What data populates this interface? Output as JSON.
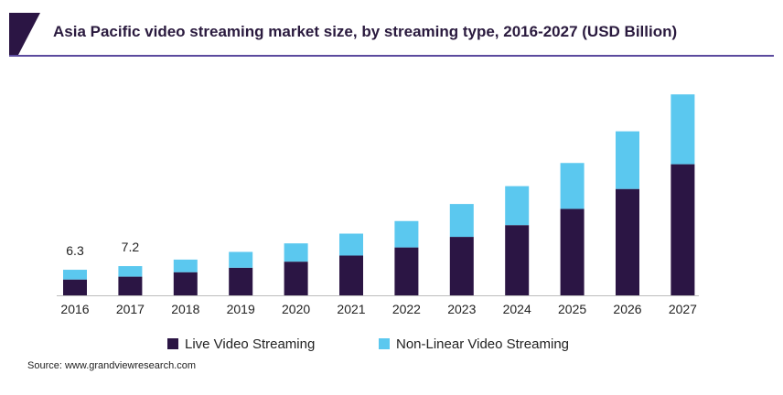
{
  "title": "Asia Pacific video streaming market size, by streaming type, 2016-2027 (USD Billion)",
  "source": "Source: www.grandviewresearch.com",
  "colors": {
    "live": "#2b1544",
    "nonlinear": "#5bc8ef",
    "title_accent": "#2b1544",
    "title_underline": "#5b4a9e"
  },
  "chart_data": {
    "type": "bar",
    "stacked": true,
    "categories": [
      "2016",
      "2017",
      "2018",
      "2019",
      "2020",
      "2021",
      "2022",
      "2023",
      "2024",
      "2025",
      "2026",
      "2027"
    ],
    "series": [
      {
        "name": "Live Video Streaming",
        "values": [
          3.9,
          4.6,
          5.7,
          6.8,
          8.3,
          9.8,
          11.8,
          14.4,
          17.3,
          21.3,
          26.2,
          32.3
        ]
      },
      {
        "name": "Non-Linear Video Streaming",
        "values": [
          2.4,
          2.6,
          3.1,
          3.9,
          4.5,
          5.4,
          6.5,
          8.1,
          9.6,
          11.3,
          14.2,
          17.2
        ]
      }
    ],
    "data_labels": [
      {
        "category": "2016",
        "text": "6.3"
      },
      {
        "category": "2017",
        "text": "7.2"
      }
    ],
    "ylim": [
      0,
      50
    ],
    "grid": false,
    "legend": "bottom"
  }
}
